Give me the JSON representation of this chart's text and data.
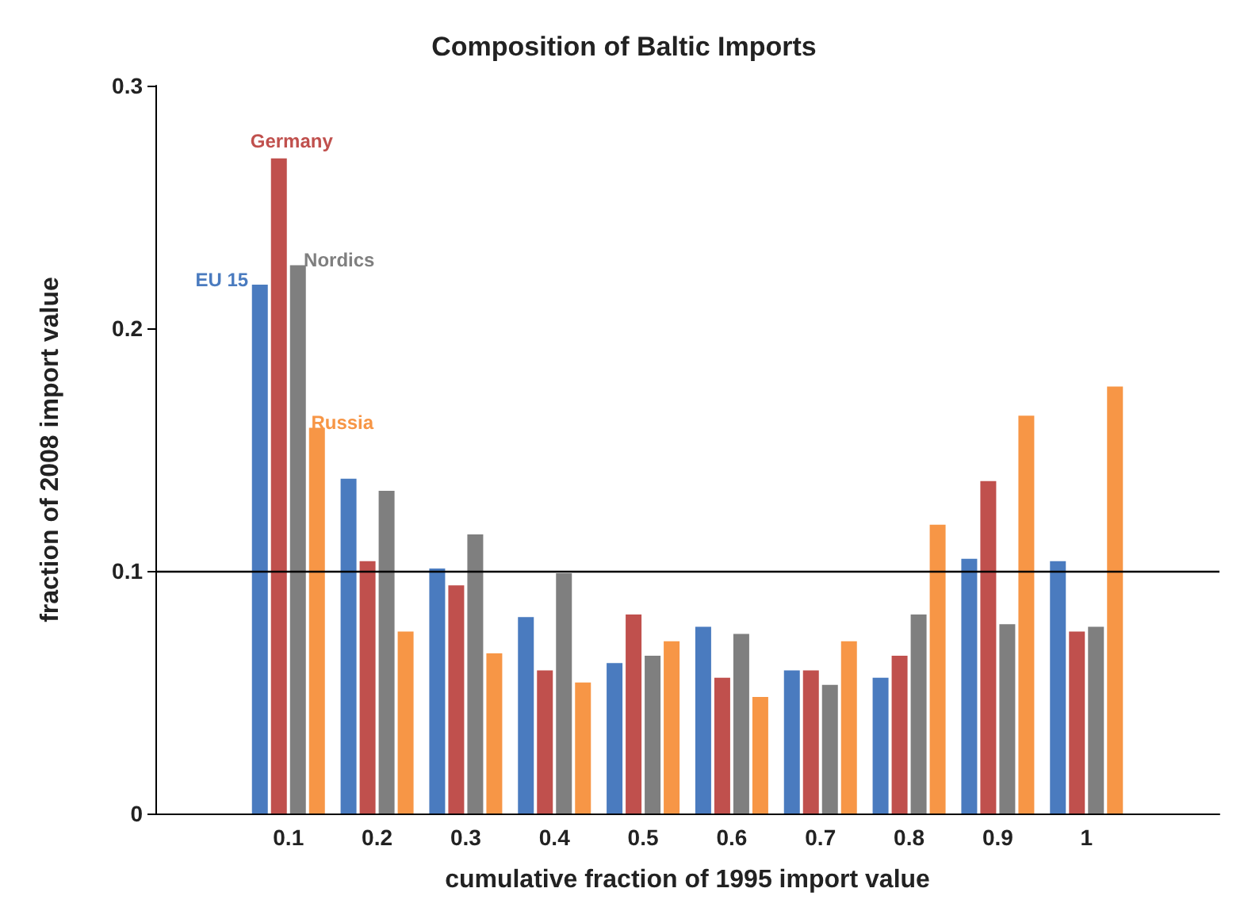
{
  "chart_data": {
    "type": "bar",
    "title": "Composition of Baltic Imports",
    "xlabel": "cumulative fraction of 1995 import value",
    "ylabel": "fraction of 2008 import value",
    "categories": [
      null,
      "0.1",
      "0.2",
      "0.3",
      "0.4",
      "0.5",
      "0.6",
      "0.7",
      "0.8",
      "0.9",
      "1",
      null
    ],
    "series": [
      {
        "name": "EU 15",
        "color": "#4a7bbf",
        "values": [
          null,
          0.218,
          0.138,
          0.101,
          0.081,
          0.062,
          0.077,
          0.059,
          0.056,
          0.105,
          0.104,
          null
        ]
      },
      {
        "name": "Germany",
        "color": "#c0504d",
        "values": [
          null,
          0.27,
          0.104,
          0.094,
          0.059,
          0.082,
          0.056,
          0.059,
          0.065,
          0.137,
          0.075,
          null
        ]
      },
      {
        "name": "Nordics",
        "color": "#7f7f7f",
        "values": [
          null,
          0.226,
          0.133,
          0.115,
          0.099,
          0.065,
          0.074,
          0.053,
          0.082,
          0.078,
          0.077,
          null
        ]
      },
      {
        "name": "Russia",
        "color": "#f79646",
        "values": [
          null,
          0.159,
          0.075,
          0.066,
          0.054,
          0.071,
          0.048,
          0.071,
          0.119,
          0.164,
          0.176,
          null
        ]
      }
    ],
    "ylim": [
      0,
      0.3
    ],
    "yticks": [
      0,
      0.1,
      0.2,
      0.3
    ],
    "grid": false,
    "legend": false,
    "ref_lines": [
      {
        "axis": "y",
        "value": 0.1,
        "color": "#000000"
      }
    ]
  }
}
